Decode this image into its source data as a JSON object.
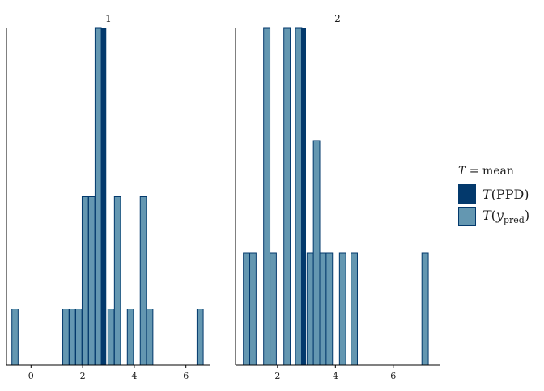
{
  "chart_data": {
    "type": "bar",
    "subtype": "histogram",
    "colors": {
      "ppd": "#03396c",
      "pred_fill": "#6497b1",
      "pred_edge": "#03396c",
      "axis": "#000000",
      "text": "#1a1a1a"
    },
    "legend": {
      "title_var": "T",
      "title_eq": " = mean",
      "items": [
        {
          "key": "ppd",
          "label_var": "T",
          "label_open": "(",
          "label_main": "PPD",
          "label_sub": "",
          "label_close": ")"
        },
        {
          "key": "pred",
          "label_var": "T",
          "label_open": "(",
          "label_main": "y",
          "label_sub": "pred",
          "label_close": ")"
        }
      ],
      "position": "right"
    },
    "panels": [
      {
        "title": "1",
        "xlim": [
          -0.95,
          6.95
        ],
        "x_ticks": [
          0,
          2,
          4,
          6
        ],
        "x_tick_labels": [
          "0",
          "2",
          "4",
          "6"
        ],
        "ylim": [
          0,
          6
        ],
        "bin_width": 0.24,
        "bins": [
          {
            "x": -0.62,
            "count": 1
          },
          {
            "x": 1.35,
            "count": 1
          },
          {
            "x": 1.6,
            "count": 1
          },
          {
            "x": 1.85,
            "count": 1
          },
          {
            "x": 2.1,
            "count": 3
          },
          {
            "x": 2.35,
            "count": 3
          },
          {
            "x": 2.6,
            "count": 6
          },
          {
            "x": 3.1,
            "count": 1
          },
          {
            "x": 3.35,
            "count": 3
          },
          {
            "x": 3.85,
            "count": 1
          },
          {
            "x": 4.35,
            "count": 3
          },
          {
            "x": 4.6,
            "count": 1
          },
          {
            "x": 6.55,
            "count": 1
          }
        ],
        "stat": {
          "x": 2.82,
          "label": "T(PPD)"
        }
      },
      {
        "title": "2",
        "xlim": [
          0.55,
          7.6
        ],
        "x_ticks": [
          2,
          4,
          6
        ],
        "x_tick_labels": [
          "2",
          "4",
          "6"
        ],
        "ylim": [
          0,
          6
        ],
        "bin_width": 0.22,
        "bins": [
          {
            "x": 0.93,
            "count": 2
          },
          {
            "x": 1.15,
            "count": 2
          },
          {
            "x": 1.63,
            "count": 6
          },
          {
            "x": 1.85,
            "count": 2
          },
          {
            "x": 2.33,
            "count": 6
          },
          {
            "x": 2.73,
            "count": 6
          },
          {
            "x": 3.13,
            "count": 2
          },
          {
            "x": 3.35,
            "count": 4
          },
          {
            "x": 3.57,
            "count": 2
          },
          {
            "x": 3.79,
            "count": 2
          },
          {
            "x": 4.25,
            "count": 2
          },
          {
            "x": 4.65,
            "count": 2
          },
          {
            "x": 7.1,
            "count": 2
          }
        ],
        "stat": {
          "x": 2.9,
          "label": "T(PPD)"
        }
      }
    ]
  }
}
